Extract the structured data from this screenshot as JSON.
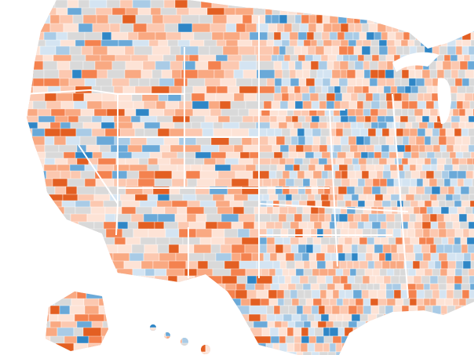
{
  "map": {
    "type": "choropleth",
    "background": "#ffffff",
    "missing_color": "#d9d9d9",
    "border_color": "#ffffff",
    "palette": [
      "#fde3d6",
      "#fcc8b0",
      "#f9a982",
      "#f4824f",
      "#e35f22",
      "#d9d9d9",
      "#d4e4f2",
      "#a9cbe6",
      "#6aa9d8",
      "#2f86c6"
    ]
  }
}
